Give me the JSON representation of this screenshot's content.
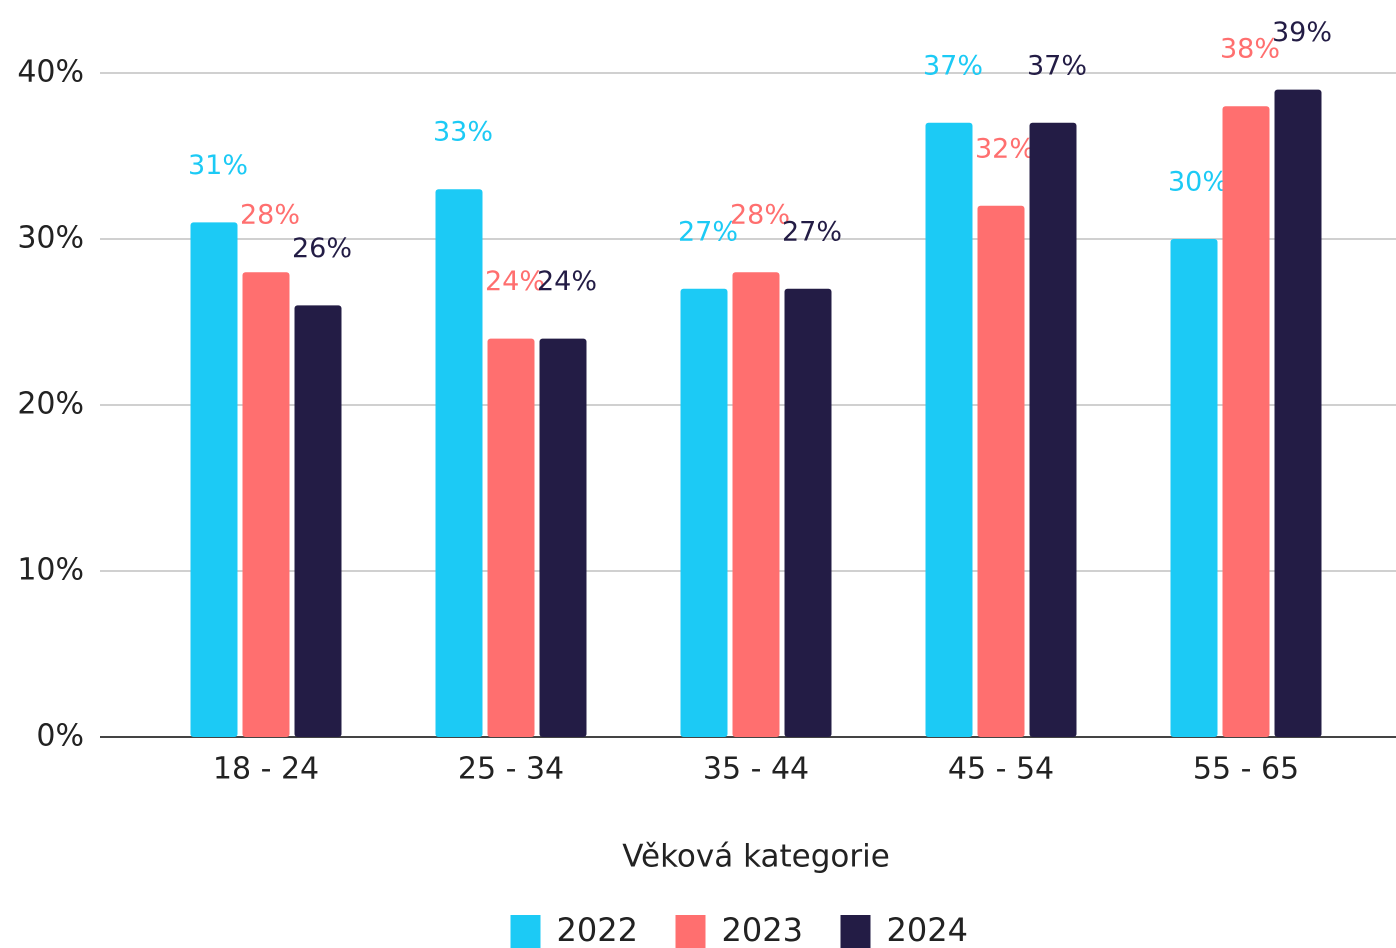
{
  "chart_data": {
    "type": "bar",
    "x_label": "Věková kategorie",
    "categories": [
      "18 - 24",
      "25 - 34",
      "35 - 44",
      "45 - 54",
      "55 - 65"
    ],
    "series": [
      {
        "name": "2022",
        "color": "#1ccaf5",
        "values": [
          31,
          33,
          27,
          37,
          30
        ],
        "value_labels": [
          "31%",
          "33%",
          "27%",
          "37%",
          "30%"
        ]
      },
      {
        "name": "2023",
        "color": "#ff6f6f",
        "values": [
          28,
          24,
          28,
          32,
          38
        ],
        "value_labels": [
          "28%",
          "24%",
          "28%",
          "32%",
          "38%"
        ]
      },
      {
        "name": "2024",
        "color": "#231c45",
        "values": [
          26,
          24,
          27,
          37,
          39
        ],
        "value_labels": [
          "26%",
          "24%",
          "27%",
          "37%",
          "39%"
        ]
      }
    ],
    "ylim": [
      0,
      40
    ],
    "yticks": [
      {
        "value": 0,
        "label": "0%"
      },
      {
        "value": 10,
        "label": "10%"
      },
      {
        "value": 20,
        "label": "20%"
      },
      {
        "value": 30,
        "label": "30%"
      },
      {
        "value": 40,
        "label": "40%"
      }
    ],
    "grid": true,
    "legend": "bottom"
  }
}
